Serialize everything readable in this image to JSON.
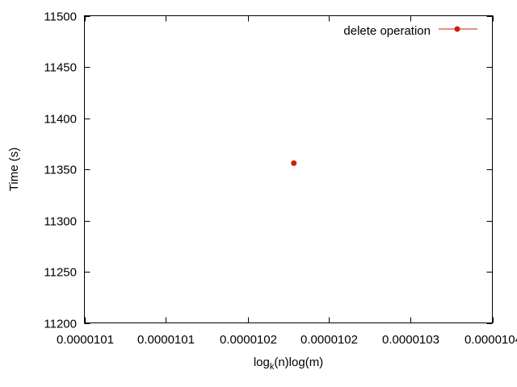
{
  "chart_data": {
    "type": "scatter",
    "ylabel": "Time (s)",
    "xlabel": {
      "prefix": "log",
      "subscript": "k",
      "suffix": "(n)log(m)"
    },
    "xlim": [
      1.008e-05,
      1.038e-05
    ],
    "ylim": [
      11200,
      11500
    ],
    "x_ticks": [
      {
        "value": 1.008e-05,
        "label": "0.0000101"
      },
      {
        "value": 1.014e-05,
        "label": "0.0000101"
      },
      {
        "value": 1.02e-05,
        "label": "0.0000102"
      },
      {
        "value": 1.026e-05,
        "label": "0.0000102"
      },
      {
        "value": 1.032e-05,
        "label": "0.0000103"
      },
      {
        "value": 1.038e-05,
        "label": "0.0000104"
      }
    ],
    "y_ticks": [
      {
        "value": 11200,
        "label": "11200"
      },
      {
        "value": 11250,
        "label": "11250"
      },
      {
        "value": 11300,
        "label": "11300"
      },
      {
        "value": 11350,
        "label": "11350"
      },
      {
        "value": 11400,
        "label": "11400"
      },
      {
        "value": 11450,
        "label": "11450"
      },
      {
        "value": 11500,
        "label": "11500"
      }
    ],
    "series": [
      {
        "name": "delete operation",
        "color": "#cc2200",
        "points": [
          {
            "x": 1.0234e-05,
            "y": 11356
          }
        ]
      }
    ],
    "grid": false,
    "legend": "top-right"
  }
}
